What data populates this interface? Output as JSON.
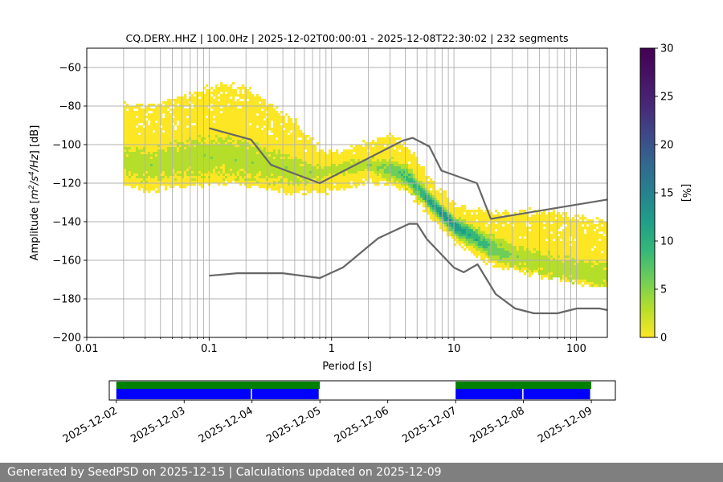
{
  "chart_data": {
    "type": "heatmap",
    "title": "CQ.DERY..HHZ | 100.0Hz | 2025-12-02T00:00:01 - 2025-12-08T22:30:02 | 232 segments",
    "xlabel": "Period [s]",
    "ylabel_parts": [
      "Amplitude [",
      "m",
      "2",
      "/s",
      "4",
      "/Hz",
      "] [dB]"
    ],
    "x_scale": "log",
    "xlim": [
      0.01,
      179
    ],
    "ylim": [
      -200,
      -50
    ],
    "x_ticks": [
      {
        "value": 0.01,
        "label": "0.01"
      },
      {
        "value": 0.1,
        "label": "0.1"
      },
      {
        "value": 1,
        "label": "1"
      },
      {
        "value": 10,
        "label": "10"
      },
      {
        "value": 100,
        "label": "100"
      }
    ],
    "y_ticks": [
      {
        "value": -60,
        "label": "−60"
      },
      {
        "value": -80,
        "label": "−80"
      },
      {
        "value": -100,
        "label": "−100"
      },
      {
        "value": -120,
        "label": "−120"
      },
      {
        "value": -140,
        "label": "−140"
      },
      {
        "value": -160,
        "label": "−160"
      },
      {
        "value": -180,
        "label": "−180"
      },
      {
        "value": -200,
        "label": "−200"
      }
    ],
    "grid": true,
    "colorbar": {
      "label": "[%]",
      "range": [
        0,
        30
      ],
      "ticks": [
        {
          "value": 0,
          "label": "0"
        },
        {
          "value": 5,
          "label": "5"
        },
        {
          "value": 10,
          "label": "10"
        },
        {
          "value": 15,
          "label": "15"
        },
        {
          "value": 20,
          "label": "20"
        },
        {
          "value": 25,
          "label": "25"
        },
        {
          "value": 30,
          "label": "30"
        }
      ]
    },
    "density_band": {
      "period": [
        0.02,
        0.03,
        0.05,
        0.08,
        0.12,
        0.2,
        0.3,
        0.5,
        0.8,
        1.2,
        2,
        3,
        4,
        5,
        6,
        8,
        10,
        15,
        20,
        30,
        50,
        80,
        120,
        179
      ],
      "mode_db": [
        -108,
        -110,
        -108,
        -106,
        -105,
        -107,
        -110,
        -113,
        -114,
        -112,
        -110,
        -112,
        -116,
        -122,
        -128,
        -136,
        -142,
        -148,
        -153,
        -157,
        -161,
        -164,
        -166,
        -167
      ],
      "p10_db": [
        -118,
        -122,
        -120,
        -119,
        -118,
        -119,
        -121,
        -123,
        -123,
        -121,
        -117,
        -118,
        -122,
        -128,
        -134,
        -142,
        -149,
        -156,
        -160,
        -163,
        -166,
        -169,
        -171,
        -172
      ],
      "p90_db": [
        -80,
        -82,
        -78,
        -74,
        -70,
        -72,
        -80,
        -90,
        -104,
        -104,
        -100,
        -96,
        -102,
        -110,
        -118,
        -126,
        -132,
        -136,
        -136,
        -136,
        -136,
        -138,
        -140,
        -142
      ]
    },
    "noise_models": [
      {
        "period": [
          0.1,
          0.17,
          0.4,
          0.8,
          1.24,
          2.4,
          4.3,
          5.0,
          6.0,
          10.0,
          12.0,
          15.6,
          21.9,
          31.6,
          45.0,
          70.0,
          101.0,
          154.0,
          179.0
        ],
        "db": [
          -168,
          -166.7,
          -166.7,
          -169.2,
          -163.7,
          -148.6,
          -141.1,
          -141.1,
          -149.0,
          -163.8,
          -166.2,
          -162.1,
          -177.5,
          -185.0,
          -187.5,
          -187.5,
          -185.0,
          -185.0,
          -185.8
        ]
      },
      {
        "period": [
          0.1,
          0.22,
          0.32,
          0.8,
          3.8,
          4.6,
          6.3,
          7.9,
          15.4,
          20.0,
          179.0
        ],
        "db": [
          -91.5,
          -97.4,
          -110.5,
          -120.0,
          -98.0,
          -96.5,
          -101.0,
          -113.5,
          -120.0,
          -138.5,
          -128.5
        ]
      }
    ],
    "coverage": {
      "dates": [
        "2025-12-02",
        "2025-12-03",
        "2025-12-04",
        "2025-12-05",
        "2025-12-06",
        "2025-12-07",
        "2025-12-08",
        "2025-12-09"
      ],
      "range": [
        "2025-12-01T21:30",
        "2025-12-09T08:30"
      ],
      "used_intervals": [
        [
          "2025-12-02T00:00",
          "2025-12-05T00:00"
        ],
        [
          "2025-12-07T00:00",
          "2025-12-09T00:00"
        ]
      ],
      "data_intervals": [
        [
          "2025-12-02T00:00",
          "2025-12-04T00:00"
        ],
        [
          "2025-12-04T00:00",
          "2025-12-05T00:00"
        ],
        [
          "2025-12-07T00:00",
          "2025-12-08T00:00"
        ],
        [
          "2025-12-08T00:00",
          "2025-12-09T00:00"
        ]
      ],
      "used_color": "#008000",
      "data_color": "#0000ff"
    },
    "colors": {
      "model_line": "#666666",
      "grid": "#b0b0b0"
    }
  },
  "footer": {
    "text": "Generated by SeedPSD on 2025-12-15 | Calculations updated on 2025-12-09"
  }
}
